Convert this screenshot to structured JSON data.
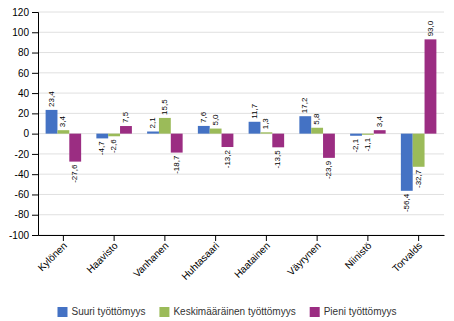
{
  "chart_data": {
    "type": "bar",
    "categories": [
      "Kylönen",
      "Haavisto",
      "Vanhanen",
      "Huhtasaari",
      "Haatainen",
      "Väyrynen",
      "Niinistö",
      "Torvalds"
    ],
    "series": [
      {
        "name": "Suuri työttömyys",
        "color": "#4472c4",
        "values": [
          23.4,
          -4.7,
          2.1,
          7.6,
          11.7,
          17.2,
          -2.1,
          -56.4
        ],
        "value_labels": [
          "23,4",
          "-4,7",
          "2,1",
          "7,6",
          "11,7",
          "17,2",
          "-2,1",
          "-56,4"
        ]
      },
      {
        "name": "Keskimääräinen työttömyys",
        "color": "#9bbb59",
        "values": [
          3.4,
          -2.6,
          15.5,
          5.0,
          1.3,
          5.8,
          -1.1,
          -32.7
        ],
        "value_labels": [
          "3,4",
          "-2,6",
          "15,5",
          "5,0",
          "1,3",
          "5,8",
          "-1,1",
          "-32,7"
        ]
      },
      {
        "name": "Pieni työttömyys",
        "color": "#9b2d82",
        "values": [
          -27.6,
          7.5,
          -18.7,
          -13.2,
          -13.5,
          -23.9,
          3.4,
          93.0
        ],
        "value_labels": [
          "-27,6",
          "7,5",
          "-18,7",
          "-13,2",
          "-13,5",
          "-23,9",
          "3,4",
          "93,0"
        ]
      }
    ],
    "ylim": [
      -100,
      120
    ],
    "yticks": [
      -100,
      -80,
      -60,
      -40,
      -20,
      0,
      20,
      40,
      60,
      80,
      100,
      120
    ],
    "grid": true,
    "legend": "bottom",
    "data_labels": true
  }
}
